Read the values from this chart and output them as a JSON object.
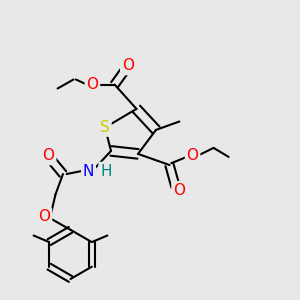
{
  "background_color": "#e8e8e8",
  "atom_colors": {
    "S": "#cccc00",
    "O": "#ff0000",
    "N": "#0000ff",
    "H_on_N": "#008888",
    "C": "#000000"
  },
  "font_size_atoms": 11,
  "font_size_small": 9,
  "line_width": 1.5
}
